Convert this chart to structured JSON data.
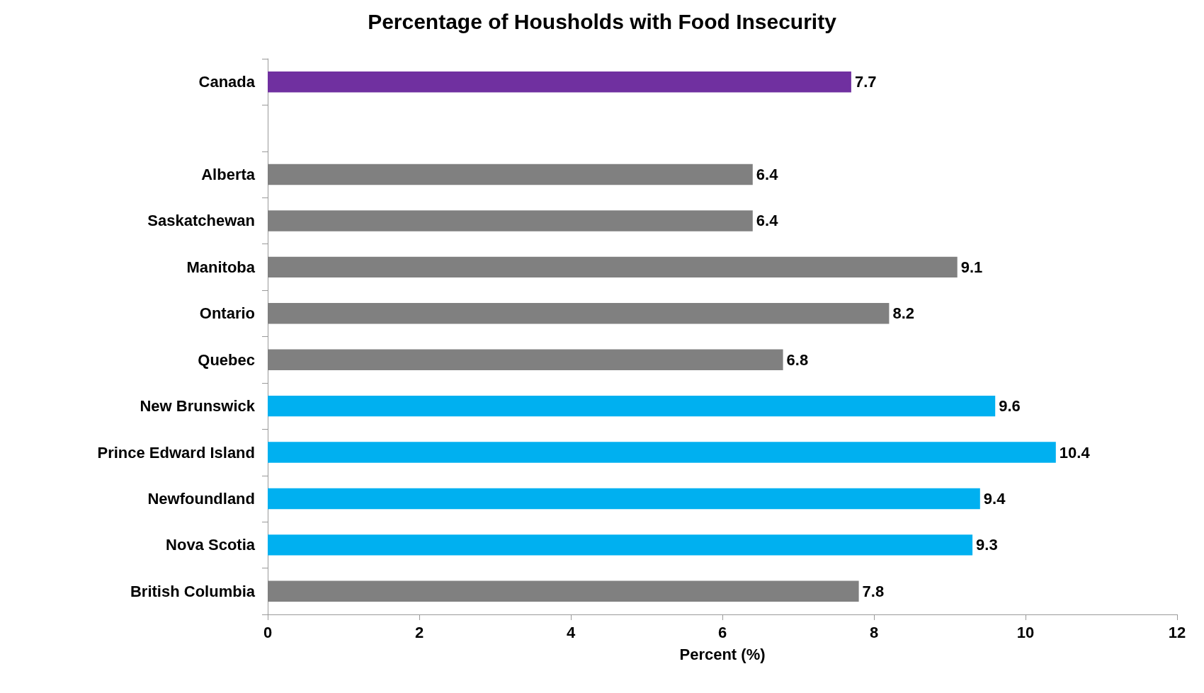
{
  "chart_data": {
    "type": "bar",
    "orientation": "horizontal",
    "title": "Percentage of Housholds with Food Insecurity",
    "xlabel": "Percent (%)",
    "categories": [
      "Canada",
      null,
      "Alberta",
      "Saskatchewan",
      "Manitoba",
      "Ontario",
      "Quebec",
      "New Brunswick",
      "Prince Edward Island",
      "Newfoundland",
      "Nova Scotia",
      "British Columbia"
    ],
    "values": [
      7.7,
      null,
      6.4,
      6.4,
      9.1,
      8.2,
      6.8,
      9.6,
      10.4,
      9.4,
      9.3,
      7.8
    ],
    "colors": [
      "#7030a0",
      "#808080",
      "#808080",
      "#808080",
      "#808080",
      "#808080",
      "#808080",
      "#00b0f0",
      "#00b0f0",
      "#00b0f0",
      "#00b0f0",
      "#808080"
    ],
    "xlim": [
      0,
      12
    ],
    "xticks": [
      0,
      2,
      4,
      6,
      8,
      10,
      12
    ],
    "grid": false,
    "data_labels": true
  }
}
